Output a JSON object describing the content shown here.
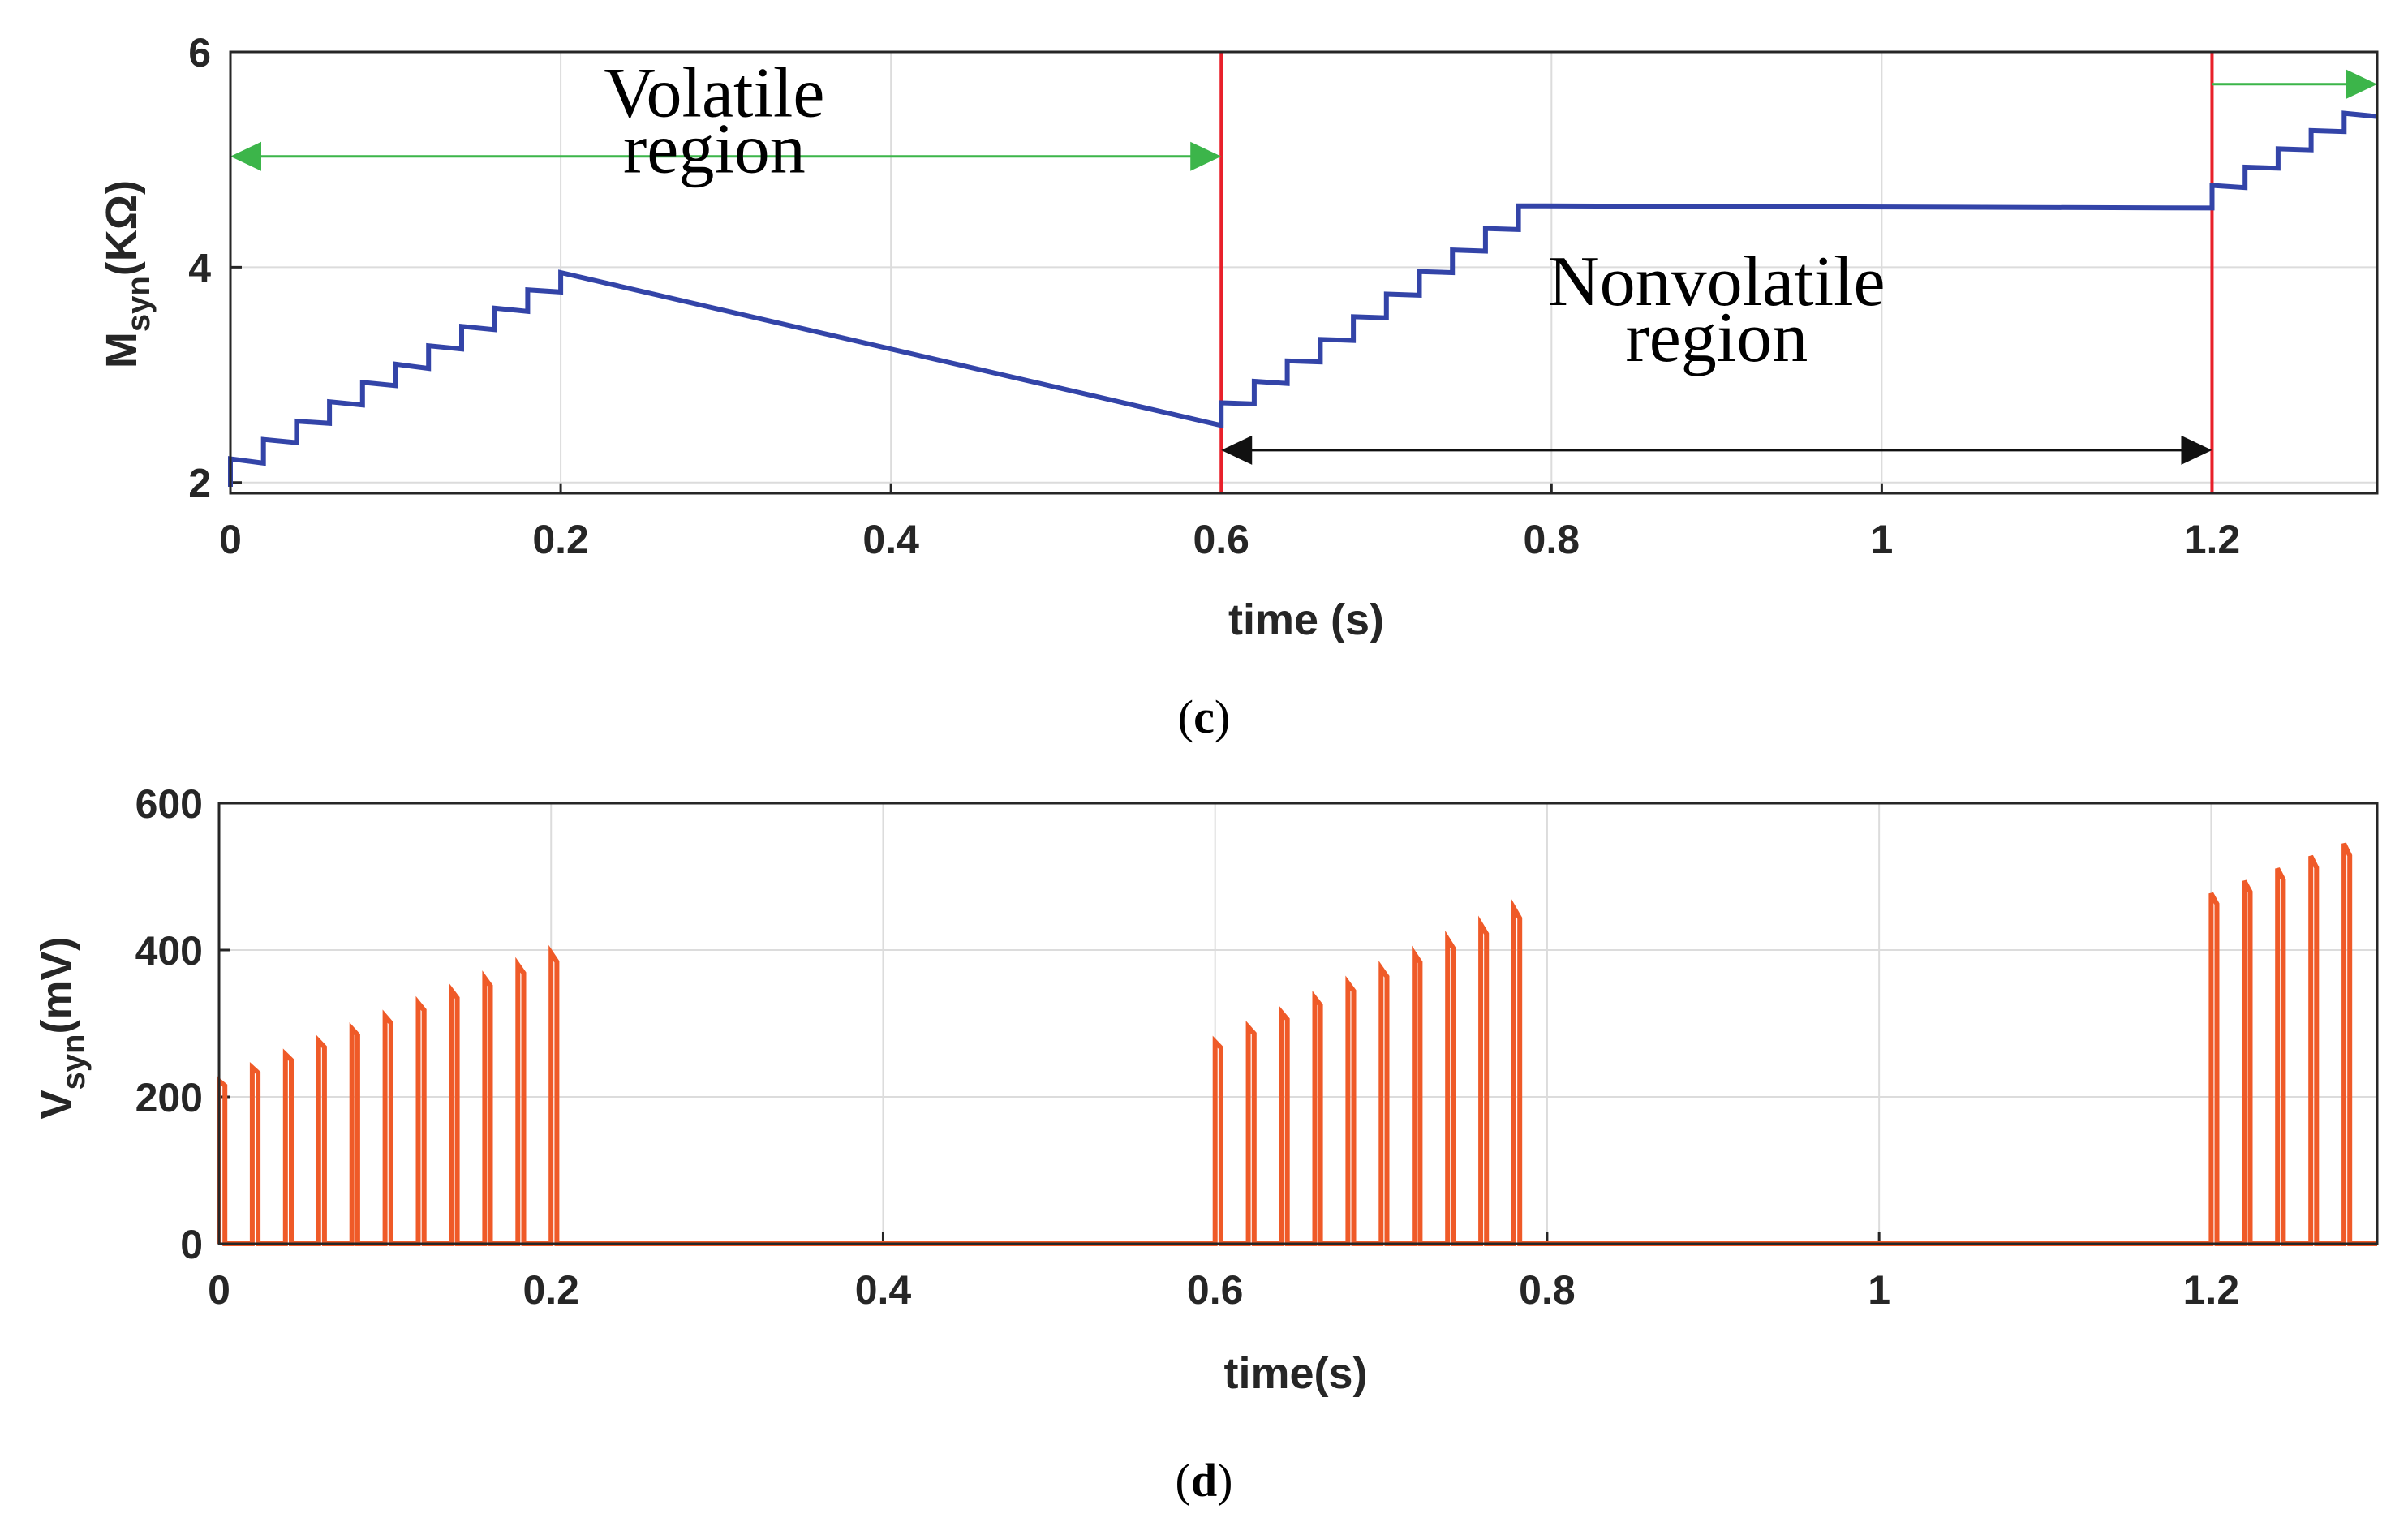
{
  "chart_data": [
    {
      "id": "c",
      "type": "line",
      "caption_letter": "c",
      "xlabel": "time (s)",
      "ylabel_main": "M",
      "ylabel_sub": "syn",
      "ylabel_unit": "(KΩ)",
      "xlim": [
        0,
        1.3
      ],
      "ylim": [
        1.9,
        6
      ],
      "xticks": [
        0,
        0.2,
        0.4,
        0.6,
        0.8,
        1,
        1.2
      ],
      "xtick_labels": [
        "0",
        "0.2",
        "0.4",
        "0.6",
        "0.8",
        "1",
        "1.2"
      ],
      "yticks": [
        2,
        4,
        6
      ],
      "ytick_labels": [
        "2",
        "4",
        "6"
      ],
      "grid": true,
      "series": [
        {
          "name": "M_syn",
          "color": "#3344a8",
          "x": [
            0,
            0,
            0.02,
            0.02,
            0.04,
            0.04,
            0.06,
            0.06,
            0.08,
            0.08,
            0.1,
            0.1,
            0.12,
            0.12,
            0.14,
            0.14,
            0.16,
            0.16,
            0.18,
            0.18,
            0.2,
            0.2,
            0.6,
            0.6,
            0.62,
            0.62,
            0.64,
            0.64,
            0.66,
            0.66,
            0.68,
            0.68,
            0.7,
            0.7,
            0.72,
            0.72,
            0.74,
            0.74,
            0.76,
            0.76,
            0.78,
            0.78,
            1.2,
            1.2,
            1.22,
            1.22,
            1.24,
            1.24,
            1.26,
            1.26,
            1.28,
            1.28,
            1.3
          ],
          "y": [
            1.96,
            2.22,
            2.18,
            2.4,
            2.37,
            2.57,
            2.55,
            2.75,
            2.72,
            2.93,
            2.9,
            3.1,
            3.06,
            3.27,
            3.24,
            3.45,
            3.42,
            3.62,
            3.59,
            3.79,
            3.77,
            3.95,
            2.53,
            2.74,
            2.73,
            2.94,
            2.92,
            3.13,
            3.12,
            3.33,
            3.32,
            3.54,
            3.53,
            3.75,
            3.74,
            3.96,
            3.95,
            4.16,
            4.15,
            4.36,
            4.35,
            4.57,
            4.55,
            4.76,
            4.74,
            4.93,
            4.92,
            5.1,
            5.09,
            5.27,
            5.26,
            5.43,
            5.4
          ]
        }
      ],
      "boundaries": {
        "x": [
          0.6,
          1.2
        ],
        "color": "#e8202a"
      },
      "arrows": [
        {
          "name": "volatile-arrow",
          "x1": 0,
          "x2": 0.6,
          "y": 5.03,
          "heads": "both",
          "color": "#3cb54a"
        },
        {
          "name": "nonvolatile-arrow",
          "x1": 0.6,
          "x2": 1.2,
          "y": 2.3,
          "heads": "both",
          "color": "#111111"
        },
        {
          "name": "continuation-arrow",
          "x1": 1.2,
          "x2": 1.3,
          "y": 5.7,
          "heads": "end",
          "color": "#3cb54a"
        }
      ],
      "annotations": [
        {
          "name": "volatile-label",
          "lines": [
            "Volatile",
            "region"
          ],
          "x": 0.293,
          "y": [
            5.4,
            4.88
          ]
        },
        {
          "name": "nonvolatile-label",
          "lines": [
            "Nonvolatile",
            "region"
          ],
          "x": 0.9,
          "y": [
            3.65,
            3.13
          ]
        }
      ]
    },
    {
      "id": "d",
      "type": "line",
      "caption_letter": "d",
      "xlabel": "time(s)",
      "ylabel_main": "V",
      "ylabel_sub": "syn",
      "ylabel_unit": "(mV)",
      "xlim": [
        0,
        1.3
      ],
      "ylim": [
        0,
        600
      ],
      "xticks": [
        0,
        0.2,
        0.4,
        0.6,
        0.8,
        1,
        1.2
      ],
      "xtick_labels": [
        "0",
        "0.2",
        "0.4",
        "0.6",
        "0.8",
        "1",
        "1.2"
      ],
      "yticks": [
        0,
        200,
        400,
        600
      ],
      "ytick_labels": [
        "0",
        "200",
        "400",
        "600"
      ],
      "grid": true,
      "series": [
        {
          "name": "V_syn spikes",
          "color": "#ef5a28",
          "spike_width": 0.0035,
          "x": [
            0,
            0.02,
            0.04,
            0.06,
            0.08,
            0.1,
            0.12,
            0.14,
            0.16,
            0.18,
            0.2,
            0.6,
            0.62,
            0.64,
            0.66,
            0.68,
            0.7,
            0.72,
            0.74,
            0.76,
            0.78,
            1.2,
            1.22,
            1.24,
            1.26,
            1.28
          ],
          "y": [
            222,
            240,
            258,
            276,
            293,
            310,
            328,
            345,
            362,
            380,
            396,
            275,
            295,
            315,
            335,
            355,
            375,
            395,
            415,
            435,
            457,
            477,
            494,
            511,
            528,
            545
          ]
        }
      ]
    }
  ]
}
